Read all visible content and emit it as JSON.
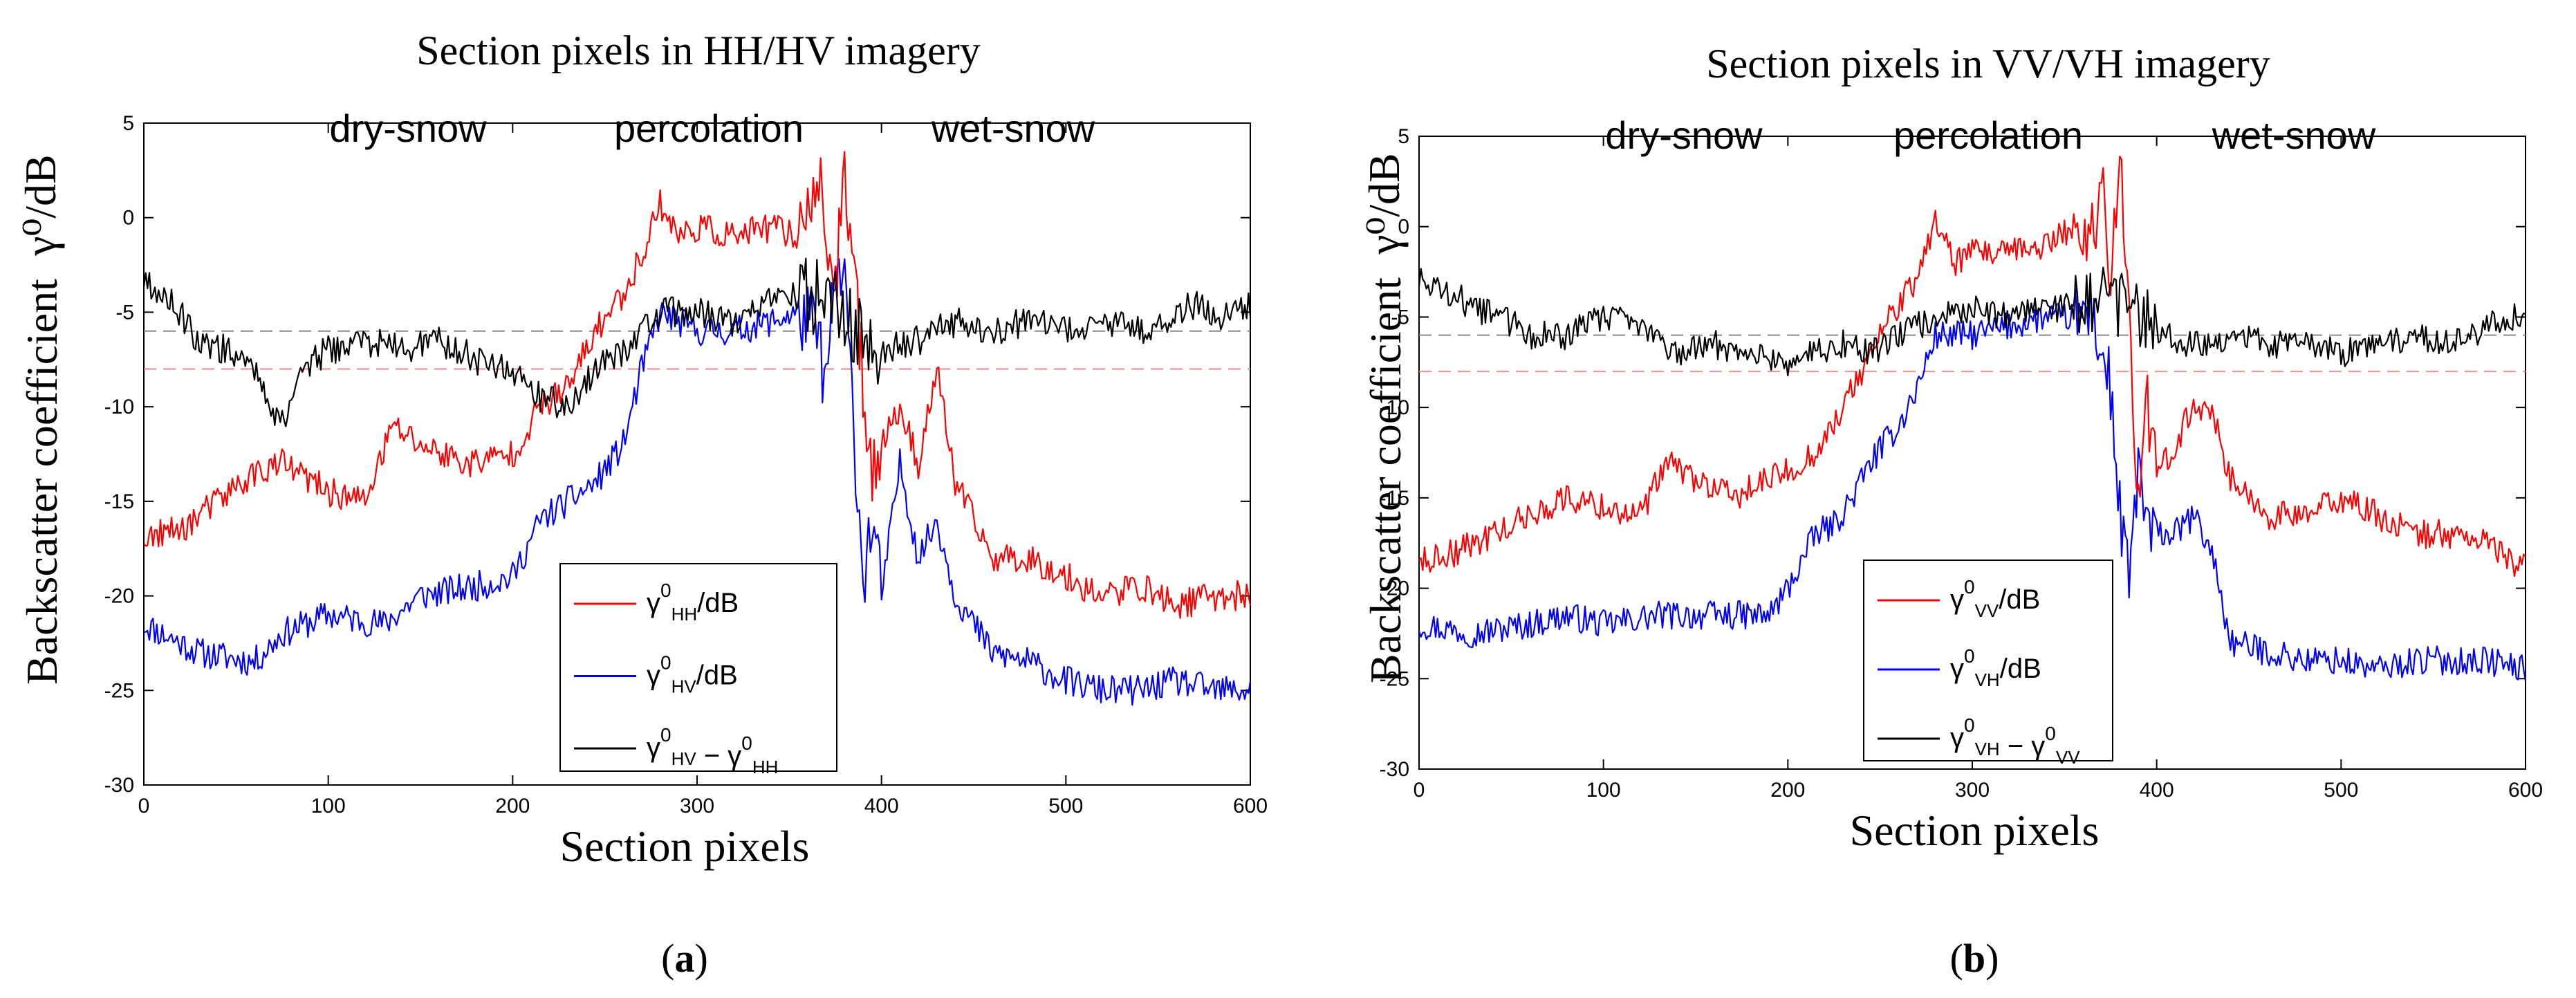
{
  "chart_data": [
    {
      "type": "line",
      "panel": "a",
      "title": "Section pixels in HH/HV imagery",
      "xlabel": "Section pixels",
      "ylabel": "Backscatter coefficient",
      "ylabel_unit": "γ⁰/dB",
      "caption_letter": "a",
      "xlim": [
        0,
        600
      ],
      "ylim": [
        -30,
        5
      ],
      "xticks": [
        0,
        100,
        200,
        300,
        400,
        500,
        600
      ],
      "yticks": [
        5,
        0,
        -5,
        -10,
        -15,
        -20,
        -25,
        -30
      ],
      "regions": [
        "dry-snow",
        "percolation",
        "wet-snow"
      ],
      "reference_lines": [
        {
          "value": -6,
          "color": "#8a8a8a",
          "style": "dashed"
        },
        {
          "value": -8,
          "color": "#f08a8a",
          "style": "dashed"
        }
      ],
      "legend": [
        {
          "sym": "γ",
          "sup": "0",
          "sub": "HH",
          "after": "/dB"
        },
        {
          "sym": "γ",
          "sup": "0",
          "sub": "HV",
          "after": "/dB"
        },
        {
          "sym": "γ",
          "sup": "0",
          "sub": "HV",
          "minus": " − ",
          "sym2": "γ",
          "sup2": "0",
          "sub2": "HH"
        }
      ],
      "series": [
        {
          "name": "HH",
          "color": "#ff0000",
          "x": [
            0,
            20,
            40,
            60,
            75,
            100,
            120,
            135,
            150,
            175,
            200,
            215,
            230,
            245,
            260,
            270,
            280,
            290,
            300,
            320,
            340,
            355,
            365,
            370,
            375,
            380,
            385,
            390,
            395,
            400,
            410,
            420,
            430,
            440,
            460,
            480,
            500,
            520,
            540,
            560,
            580,
            600
          ],
          "y": [
            -17,
            -16.5,
            -15,
            -13.5,
            -13,
            -14.5,
            -15,
            -11,
            -12,
            -13,
            -12.5,
            -10,
            -9,
            -6,
            -4,
            -2,
            0.8,
            -1,
            -0.5,
            -1,
            -0.5,
            -1,
            2.5,
            -1,
            -3.5,
            1.5,
            -2,
            -9,
            -13,
            -12,
            -10,
            -13,
            -8,
            -14,
            -18,
            -18,
            -19,
            -20,
            -19.5,
            -20.5,
            -20,
            -20
          ]
        },
        {
          "name": "HV",
          "color": "#0000ff",
          "x": [
            0,
            30,
            60,
            75,
            100,
            130,
            150,
            180,
            200,
            215,
            230,
            245,
            260,
            270,
            280,
            300,
            320,
            340,
            355,
            365,
            370,
            375,
            380,
            385,
            390,
            395,
            400,
            410,
            420,
            430,
            440,
            460,
            480,
            500,
            520,
            540,
            560,
            580,
            600
          ],
          "y": [
            -21.5,
            -23,
            -23.5,
            -22,
            -21,
            -21.5,
            -20,
            -19.5,
            -19,
            -16,
            -15,
            -14,
            -12,
            -8,
            -5,
            -6,
            -6,
            -5.5,
            -5,
            -6,
            -9,
            -3,
            -3.5,
            -11,
            -19,
            -16,
            -20,
            -13,
            -18,
            -16,
            -20,
            -23,
            -23.5,
            -24.5,
            -25,
            -25,
            -24.5,
            -25,
            -25
          ]
        },
        {
          "name": "HV-HH",
          "color": "#000000",
          "x": [
            0,
            15,
            30,
            45,
            60,
            70,
            75,
            85,
            100,
            120,
            140,
            160,
            180,
            200,
            215,
            230,
            245,
            260,
            280,
            300,
            320,
            340,
            360,
            370,
            380,
            390,
            400,
            420,
            440,
            460,
            480,
            500,
            520,
            540,
            560,
            575,
            580,
            590,
            600
          ],
          "y": [
            -3.5,
            -4.5,
            -6.5,
            -7,
            -8,
            -10,
            -11,
            -8,
            -7,
            -6.5,
            -7,
            -6.5,
            -7.5,
            -8,
            -9.5,
            -10,
            -8,
            -7,
            -5,
            -5,
            -5.5,
            -4.5,
            -4,
            -4.5,
            -5,
            -6.5,
            -7,
            -6.5,
            -5.5,
            -6,
            -5.5,
            -6,
            -5.5,
            -6,
            -5,
            -4.5,
            -5.5,
            -5,
            -4.5
          ]
        }
      ]
    },
    {
      "type": "line",
      "panel": "b",
      "title": "Section pixels in VV/VH imagery",
      "xlabel": "Section pixels",
      "ylabel": "Backscatter coefficient",
      "ylabel_unit": "γ⁰/dB",
      "caption_letter": "b",
      "xlim": [
        0,
        600
      ],
      "ylim": [
        -30,
        5
      ],
      "xticks": [
        0,
        100,
        200,
        300,
        400,
        500,
        600
      ],
      "yticks": [
        5,
        0,
        -5,
        -10,
        -15,
        -20,
        -25,
        -30
      ],
      "regions": [
        "dry-snow",
        "percolation",
        "wet-snow"
      ],
      "reference_lines": [
        {
          "value": -6,
          "color": "#8a8a8a",
          "style": "dashed"
        },
        {
          "value": -8,
          "color": "#f08a8a",
          "style": "dashed"
        }
      ],
      "legend": [
        {
          "sym": "γ",
          "sup": "0",
          "sub": "VV",
          "after": "/dB"
        },
        {
          "sym": "γ",
          "sup": "0",
          "sub": "VH",
          "after": "/dB"
        },
        {
          "sym": "γ",
          "sup": "0",
          "sub": "VH",
          "minus": " − ",
          "sym2": "γ",
          "sup2": "0",
          "sub2": "VV"
        }
      ],
      "series": [
        {
          "name": "VV",
          "color": "#ff0000",
          "x": [
            0,
            20,
            40,
            60,
            80,
            100,
            120,
            135,
            150,
            170,
            190,
            210,
            225,
            240,
            255,
            270,
            280,
            290,
            300,
            320,
            340,
            355,
            365,
            370,
            375,
            380,
            385,
            390,
            395,
            400,
            410,
            420,
            430,
            440,
            460,
            480,
            500,
            520,
            540,
            560,
            580,
            600
          ],
          "y": [
            -18.5,
            -18,
            -17,
            -16,
            -15,
            -15.5,
            -16,
            -13,
            -14,
            -15,
            -14,
            -13,
            -11,
            -8,
            -5,
            -3,
            0.5,
            -2,
            -1.5,
            -1.5,
            -1,
            0,
            -0.5,
            2,
            -2,
            4.5,
            -5,
            -15,
            -10,
            -14,
            -12,
            -10,
            -10,
            -14,
            -16,
            -16,
            -15,
            -16,
            -17,
            -17,
            -17.5,
            -19
          ]
        },
        {
          "name": "VH",
          "color": "#0000ff",
          "x": [
            0,
            30,
            60,
            80,
            100,
            130,
            160,
            190,
            200,
            215,
            225,
            235,
            245,
            260,
            270,
            280,
            290,
            300,
            320,
            340,
            355,
            365,
            370,
            375,
            380,
            385,
            390,
            395,
            400,
            410,
            420,
            430,
            440,
            460,
            480,
            500,
            520,
            540,
            560,
            580,
            600
          ],
          "y": [
            -22,
            -22.5,
            -22,
            -21.5,
            -22,
            -21.5,
            -21.5,
            -21.5,
            -20,
            -17,
            -16.5,
            -15,
            -13,
            -11,
            -9,
            -6,
            -6,
            -6,
            -5.5,
            -5,
            -5,
            -4.5,
            -7,
            -9,
            -16,
            -20,
            -13,
            -17,
            -17,
            -17,
            -16,
            -18,
            -23,
            -23.5,
            -24,
            -24,
            -24.5,
            -24,
            -24,
            -24,
            -24.5
          ]
        },
        {
          "name": "VH-VV",
          "color": "#000000",
          "x": [
            0,
            15,
            30,
            45,
            60,
            80,
            100,
            120,
            140,
            160,
            180,
            200,
            215,
            230,
            245,
            260,
            280,
            300,
            320,
            340,
            360,
            375,
            385,
            400,
            420,
            440,
            460,
            480,
            500,
            520,
            540,
            560,
            580,
            590,
            600
          ],
          "y": [
            -3,
            -3.5,
            -4.5,
            -5,
            -6,
            -6,
            -5,
            -5.5,
            -7,
            -6.5,
            -7,
            -7.5,
            -7,
            -6.5,
            -7,
            -6,
            -5,
            -4.5,
            -5,
            -4.5,
            -4.5,
            -4,
            -4.5,
            -6,
            -6.5,
            -6,
            -6.5,
            -6.5,
            -7,
            -6.5,
            -6,
            -6.5,
            -5.5,
            -5,
            -5
          ]
        }
      ]
    }
  ]
}
